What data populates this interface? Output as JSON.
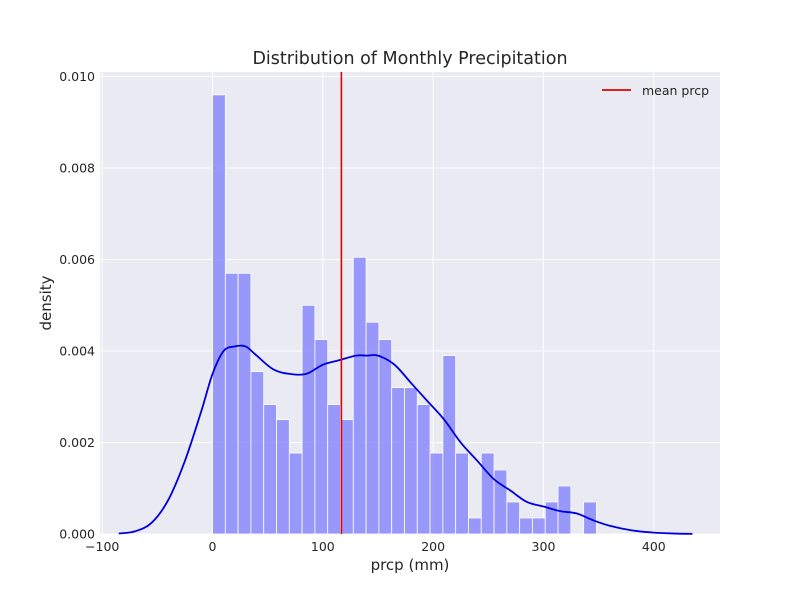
{
  "chart_data": {
    "type": "bar",
    "title": "Distribution of Monthly Precipitation",
    "xlabel": "prcp (mm)",
    "ylabel": "density",
    "xlim": [
      -102,
      460
    ],
    "ylim": [
      0,
      0.0101
    ],
    "xticks": [
      -100,
      0,
      100,
      200,
      300,
      400
    ],
    "xtick_labels": [
      "−100",
      "0",
      "100",
      "200",
      "300",
      "400"
    ],
    "yticks": [
      0,
      0.002,
      0.004,
      0.006,
      0.008,
      0.01
    ],
    "ytick_labels": [
      "0.000",
      "0.002",
      "0.004",
      "0.006",
      "0.008",
      "0.010"
    ],
    "grid": true,
    "legend": {
      "position": "top-right",
      "entries": [
        "mean prcp"
      ]
    },
    "colors": {
      "background": "#eaeaf2",
      "grid": "#ffffff",
      "hist_fill": "#8a8afc",
      "kde": "#0000dd",
      "mean": "#e00000"
    },
    "histogram": {
      "bin_width": 11.6,
      "bin_edges_start": 0,
      "densities": [
        0.0096,
        0.0057,
        0.0057,
        0.00355,
        0.00283,
        0.0025,
        0.00177,
        0.005,
        0.00425,
        0.00283,
        0.0025,
        0.00605,
        0.00463,
        0.00425,
        0.0032,
        0.0032,
        0.00283,
        0.00177,
        0.0039,
        0.00177,
        0.00035,
        0.00177,
        0.0014,
        0.0007,
        0.00035,
        0.00035,
        0.0007,
        0.00105,
        0,
        0.0007
      ]
    },
    "kde": {
      "x": [
        -85,
        -70,
        -55,
        -40,
        -25,
        -10,
        0,
        10,
        20,
        30,
        40,
        55,
        70,
        85,
        100,
        115,
        130,
        140,
        150,
        165,
        180,
        195,
        210,
        225,
        240,
        255,
        270,
        285,
        300,
        315,
        330,
        345,
        360,
        380,
        400,
        420,
        435
      ],
      "y": [
        1e-05,
        6e-05,
        0.00025,
        0.00075,
        0.0016,
        0.0027,
        0.0035,
        0.004,
        0.0041,
        0.0041,
        0.0039,
        0.0036,
        0.0035,
        0.0035,
        0.0037,
        0.0038,
        0.0039,
        0.0039,
        0.0039,
        0.0037,
        0.0033,
        0.0029,
        0.0025,
        0.002,
        0.0016,
        0.0012,
        0.00095,
        0.0007,
        0.0006,
        0.0005,
        0.00045,
        0.0003,
        0.00018,
        8e-05,
        3e-05,
        1e-05,
        3e-06
      ]
    },
    "mean": {
      "name": "mean prcp",
      "value": 116.8
    }
  }
}
